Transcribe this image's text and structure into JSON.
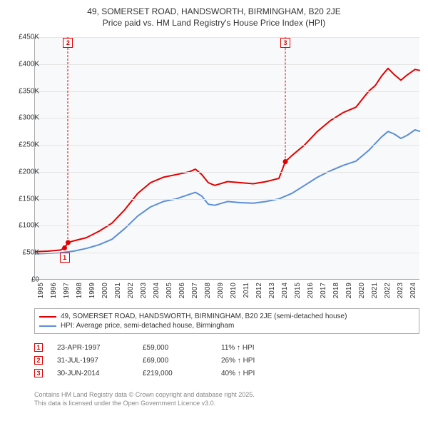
{
  "title_line1": "49, SOMERSET ROAD, HANDSWORTH, BIRMINGHAM, B20 2JE",
  "title_line2": "Price paid vs. HM Land Registry's House Price Index (HPI)",
  "chart": {
    "type": "line",
    "background_color": "#f8f9fa",
    "grid_color": "#e5e5e5",
    "axis_color": "#aaaaaa",
    "text_color": "#333333",
    "tick_fontsize": 10,
    "x_years": [
      1995,
      1996,
      1997,
      1998,
      1999,
      2000,
      2001,
      2002,
      2003,
      2004,
      2005,
      2006,
      2007,
      2008,
      2009,
      2010,
      2011,
      2012,
      2013,
      2014,
      2015,
      2016,
      2017,
      2018,
      2019,
      2020,
      2021,
      2022,
      2023,
      2024
    ],
    "xlim": [
      1995,
      2025
    ],
    "ylim": [
      0,
      450000
    ],
    "ytick_step": 50000,
    "y_tick_labels": [
      "£0",
      "£50K",
      "£100K",
      "£150K",
      "£200K",
      "£250K",
      "£300K",
      "£350K",
      "£400K",
      "£450K"
    ],
    "series": [
      {
        "name": "property",
        "label": "49, SOMERSET ROAD, HANDSWORTH, BIRMINGHAM, B20 2JE (semi-detached house)",
        "color": "#e30000",
        "line_width": 2,
        "data": [
          [
            1995,
            52000
          ],
          [
            1996,
            53000
          ],
          [
            1997,
            55000
          ],
          [
            1997.3,
            59000
          ],
          [
            1997.58,
            69000
          ],
          [
            1998,
            72000
          ],
          [
            1999,
            78000
          ],
          [
            2000,
            90000
          ],
          [
            2001,
            105000
          ],
          [
            2002,
            130000
          ],
          [
            2003,
            160000
          ],
          [
            2004,
            180000
          ],
          [
            2005,
            190000
          ],
          [
            2006,
            195000
          ],
          [
            2007,
            200000
          ],
          [
            2007.5,
            205000
          ],
          [
            2008,
            195000
          ],
          [
            2008.5,
            180000
          ],
          [
            2009,
            175000
          ],
          [
            2010,
            182000
          ],
          [
            2011,
            180000
          ],
          [
            2012,
            178000
          ],
          [
            2013,
            182000
          ],
          [
            2014,
            188000
          ],
          [
            2014.5,
            219000
          ],
          [
            2015,
            230000
          ],
          [
            2016,
            250000
          ],
          [
            2017,
            275000
          ],
          [
            2018,
            295000
          ],
          [
            2019,
            310000
          ],
          [
            2020,
            320000
          ],
          [
            2021,
            350000
          ],
          [
            2021.5,
            360000
          ],
          [
            2022,
            378000
          ],
          [
            2022.5,
            392000
          ],
          [
            2023,
            380000
          ],
          [
            2023.5,
            370000
          ],
          [
            2024,
            380000
          ],
          [
            2024.6,
            390000
          ],
          [
            2025,
            388000
          ]
        ],
        "markers": [
          {
            "n": "1",
            "x": 1997.31,
            "y": 59000
          },
          {
            "n": "2",
            "x": 1997.58,
            "y": 69000,
            "dashed": true,
            "dashed_top": true
          },
          {
            "n": "3",
            "x": 2014.5,
            "y": 219000,
            "dashed": true,
            "dashed_top": true
          }
        ]
      },
      {
        "name": "hpi",
        "label": "HPI: Average price, semi-detached house, Birmingham",
        "color": "#5b8fd6",
        "line_width": 2,
        "data": [
          [
            1995,
            48000
          ],
          [
            1996,
            49000
          ],
          [
            1997,
            50000
          ],
          [
            1998,
            53000
          ],
          [
            1999,
            58000
          ],
          [
            2000,
            65000
          ],
          [
            2001,
            75000
          ],
          [
            2002,
            95000
          ],
          [
            2003,
            118000
          ],
          [
            2004,
            135000
          ],
          [
            2005,
            145000
          ],
          [
            2006,
            150000
          ],
          [
            2007,
            158000
          ],
          [
            2007.5,
            162000
          ],
          [
            2008,
            155000
          ],
          [
            2008.5,
            140000
          ],
          [
            2009,
            138000
          ],
          [
            2010,
            145000
          ],
          [
            2011,
            143000
          ],
          [
            2012,
            142000
          ],
          [
            2013,
            145000
          ],
          [
            2014,
            150000
          ],
          [
            2015,
            160000
          ],
          [
            2016,
            175000
          ],
          [
            2017,
            190000
          ],
          [
            2018,
            202000
          ],
          [
            2019,
            212000
          ],
          [
            2020,
            220000
          ],
          [
            2021,
            240000
          ],
          [
            2022,
            265000
          ],
          [
            2022.5,
            275000
          ],
          [
            2023,
            270000
          ],
          [
            2023.5,
            262000
          ],
          [
            2024,
            268000
          ],
          [
            2024.6,
            278000
          ],
          [
            2025,
            275000
          ]
        ]
      }
    ]
  },
  "legend": [
    {
      "color": "#e30000",
      "label": "49, SOMERSET ROAD, HANDSWORTH, BIRMINGHAM, B20 2JE (semi-detached house)"
    },
    {
      "color": "#5b8fd6",
      "label": "HPI: Average price, semi-detached house, Birmingham"
    }
  ],
  "events": [
    {
      "n": "1",
      "date": "23-APR-1997",
      "price": "£59,000",
      "pct": "11% ↑ HPI"
    },
    {
      "n": "2",
      "date": "31-JUL-1997",
      "price": "£69,000",
      "pct": "26% ↑ HPI"
    },
    {
      "n": "3",
      "date": "30-JUN-2014",
      "price": "£219,000",
      "pct": "40% ↑ HPI"
    }
  ],
  "footer_line1": "Contains HM Land Registry data © Crown copyright and database right 2025.",
  "footer_line2": "This data is licensed under the Open Government Licence v3.0.",
  "marker_box_color": "#e30000"
}
